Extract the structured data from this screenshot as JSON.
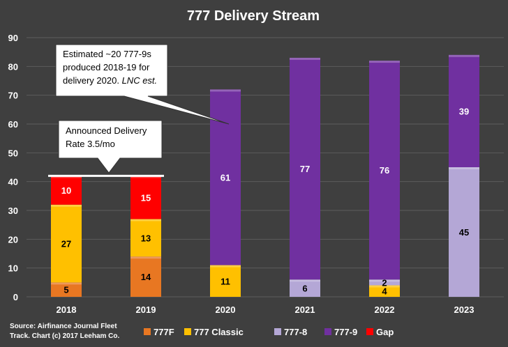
{
  "chart_data": {
    "type": "bar",
    "stacked": true,
    "title": "777 Delivery Stream",
    "categories": [
      "2018",
      "2019",
      "2020",
      "2021",
      "2022",
      "2023"
    ],
    "ylim": [
      0,
      90
    ],
    "yticks": [
      0,
      10,
      20,
      30,
      40,
      50,
      60,
      70,
      80,
      90
    ],
    "grid": true,
    "series": [
      {
        "name": "777F",
        "color": "#e87722",
        "values": [
          5,
          14,
          0,
          0,
          0,
          0
        ],
        "label_color": "#000000"
      },
      {
        "name": "777 Classic",
        "color": "#ffc000",
        "values": [
          27,
          13,
          11,
          0,
          4,
          0
        ],
        "label_color": "#000000"
      },
      {
        "name": "777-8",
        "color": "#b4a7d6",
        "values": [
          0,
          0,
          0,
          6,
          2,
          45
        ],
        "label_color": "#000000"
      },
      {
        "name": "777-9",
        "color": "#7030a0",
        "values": [
          0,
          0,
          61,
          77,
          76,
          39
        ],
        "label_color": "#ffffff"
      },
      {
        "name": "Gap",
        "color": "#ff0000",
        "values": [
          10,
          15,
          0,
          0,
          0,
          0
        ],
        "label_color": "#ffffff"
      }
    ],
    "reference_line": {
      "label": "Announced Delivery Rate 3.5/mo",
      "value": 42,
      "from_category": "2018",
      "to_category": "2019"
    },
    "annotations": [
      {
        "lines": [
          "Estimated ~20 777-9s",
          "produced 2018-19 for",
          "delivery 2020."
        ],
        "emphasis": "LNC est.",
        "points_to": "2020"
      },
      {
        "lines": [
          "Announced Delivery",
          "Rate 3.5/mo"
        ],
        "points_to": "reference_line"
      }
    ],
    "source": [
      "Source: Airfinance Journal Fleet",
      "Track. Chart (c) 2017 Leeham Co."
    ],
    "legend_position": "bottom"
  }
}
